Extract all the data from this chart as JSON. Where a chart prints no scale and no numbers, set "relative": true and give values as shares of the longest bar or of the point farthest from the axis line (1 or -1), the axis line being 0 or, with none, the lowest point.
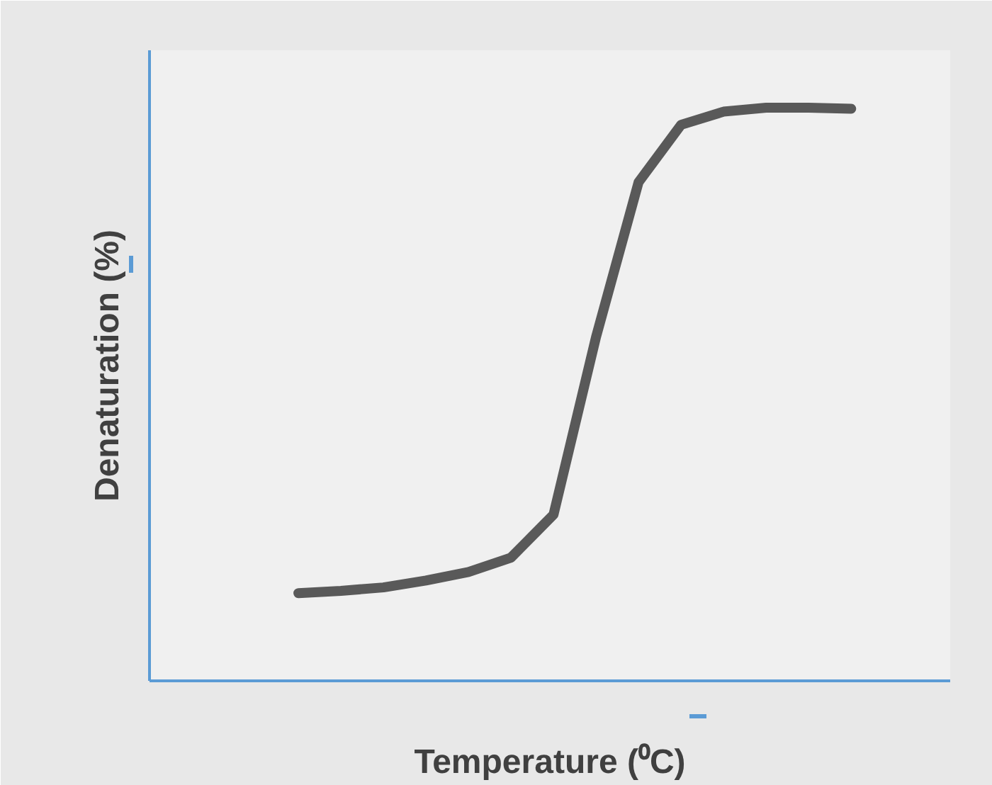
{
  "chart_data": {
    "type": "line",
    "relative": true,
    "xlabel": "Temperature (⁰C)",
    "ylabel": "Denaturation (%)",
    "categories": [
      null,
      null,
      null,
      null,
      null,
      null,
      null,
      null,
      null,
      null,
      null,
      null,
      null,
      null
    ],
    "series": [
      {
        "color": "#595959",
        "values": [
          0.153,
          0.157,
          0.163,
          0.175,
          0.19,
          0.215,
          0.29,
          0.6,
          0.87,
          0.97,
          0.993,
          1.0,
          1.0,
          0.998
        ]
      }
    ],
    "grid": false,
    "marker": "none",
    "line_style": "solid"
  }
}
